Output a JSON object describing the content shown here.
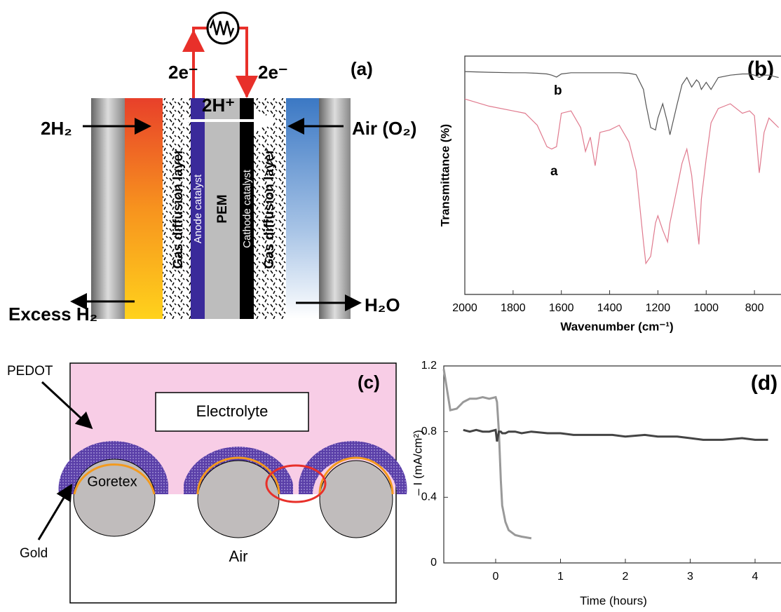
{
  "panel_a": {
    "label": "(a)",
    "electron_left": "2e⁻",
    "electron_right": "2e⁻",
    "proton": "2H⁺",
    "fuel_in": "2H₂",
    "air_in": "Air (O₂)",
    "fuel_out": "Excess H₂",
    "water_out": "H₂O",
    "layers": [
      "Gas diffusion layer",
      "Anode catalyst",
      "PEM",
      "Cathode catalyst",
      "Gas diffusion layer"
    ]
  },
  "panel_c": {
    "label": "(c)",
    "electrolyte": "Electrolyte",
    "pedot": "PEDOT",
    "goretex": "Goretex",
    "gold": "Gold",
    "air": "Air"
  },
  "chart_data": [
    {
      "type": "line",
      "label": "(b)",
      "xlabel": "Wavenumber (cm⁻¹)",
      "ylabel": "Transmittance (%)",
      "x": [
        2000,
        1900,
        1800,
        1750,
        1700,
        1660,
        1640,
        1620,
        1600,
        1560,
        1520,
        1500,
        1480,
        1460,
        1440,
        1400,
        1360,
        1320,
        1290,
        1260,
        1250,
        1230,
        1210,
        1200,
        1180,
        1160,
        1150,
        1120,
        1100,
        1080,
        1060,
        1040,
        1030,
        1020,
        1000,
        980,
        950,
        900,
        850,
        820,
        800,
        780,
        760,
        740,
        720,
        700
      ],
      "series": [
        {
          "name": "b",
          "color": "#555555",
          "values": [
            93.5,
            93.2,
            93,
            93,
            92.8,
            92.5,
            92,
            91.2,
            92.5,
            93,
            93,
            93,
            93,
            93,
            93,
            93,
            93,
            92.8,
            92.2,
            86,
            80,
            70,
            69,
            74,
            80,
            72,
            67,
            80,
            88,
            91,
            87,
            90,
            89,
            86,
            89,
            86,
            91,
            92,
            92.5,
            92.5,
            92,
            91,
            92,
            92,
            91.5,
            91
          ]
        },
        {
          "name": "a",
          "color": "#e07a8e",
          "values": [
            82,
            79,
            77,
            76,
            71,
            62,
            61,
            62,
            76,
            77,
            70,
            60,
            66,
            54,
            68,
            69,
            71,
            64,
            52,
            22,
            13,
            16,
            30,
            33,
            27,
            22,
            30,
            45,
            55,
            61,
            50,
            30,
            21,
            40,
            57,
            72,
            78,
            80,
            76,
            77,
            75,
            51,
            68,
            74,
            72,
            70
          ]
        }
      ],
      "xlim": [
        2000,
        690
      ],
      "ylim": [
        0,
        100
      ],
      "xticks": [
        2000,
        1800,
        1600,
        1400,
        1200,
        1000,
        800
      ]
    },
    {
      "type": "line",
      "label": "(d)",
      "xlabel": "Time (hours)",
      "ylabel": "– I (mA/cm²)",
      "x": [
        -0.8,
        -0.7,
        -0.6,
        -0.5,
        -0.4,
        -0.3,
        -0.2,
        -0.1,
        0,
        0.02,
        0.05,
        0.08,
        0.1,
        0.15,
        0.2,
        0.3,
        0.4,
        0.55,
        0.8,
        1,
        1.2,
        1.5,
        1.8,
        2,
        2.3,
        2.5,
        2.8,
        3,
        3.2,
        3.5,
        3.8,
        4,
        4.2
      ],
      "series": [
        {
          "color": "#999999",
          "values": [
            1.18,
            0.93,
            0.94,
            0.98,
            1.0,
            1.0,
            1.01,
            1.0,
            1.01,
            0.98,
            0.8,
            0.5,
            0.35,
            0.25,
            0.2,
            0.17,
            0.16,
            0.15,
            null,
            null,
            null,
            null,
            null,
            null,
            null,
            null,
            null,
            null,
            null,
            null,
            null,
            null,
            null
          ]
        },
        {
          "color": "#444444",
          "values": [
            null,
            null,
            null,
            0.81,
            0.8,
            0.81,
            0.8,
            0.8,
            0.81,
            0.74,
            0.8,
            0.8,
            0.79,
            0.79,
            0.8,
            0.8,
            0.79,
            0.8,
            0.79,
            0.79,
            0.78,
            0.78,
            0.78,
            0.77,
            0.78,
            0.77,
            0.77,
            0.76,
            0.75,
            0.75,
            0.76,
            0.75,
            0.75
          ]
        }
      ],
      "xlim": [
        -0.8,
        4.4
      ],
      "ylim": [
        0,
        1.2
      ],
      "xticks": [
        0,
        1,
        2,
        3,
        4
      ],
      "yticks": [
        0,
        0.4,
        0.8,
        1.2
      ]
    }
  ]
}
